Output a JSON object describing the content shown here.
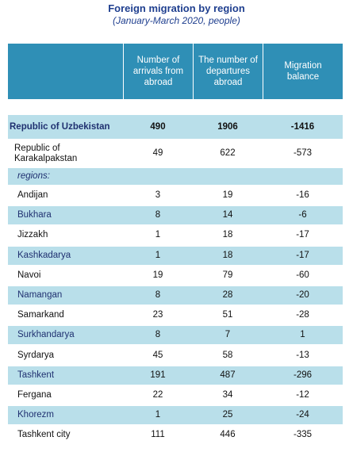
{
  "header": {
    "title": "Foreign migration by region",
    "subtitle": "(January-March 2020, people)"
  },
  "table": {
    "columns": [
      "Number of arrivals from abroad",
      "The number of departures abroad",
      "Migration balance"
    ],
    "total": [
      "Republic of Uzbekistan",
      490,
      1906,
      -1416
    ],
    "republic": [
      "Republic of Karakalpakstan",
      49,
      622,
      -573
    ],
    "regions_label": "regions:",
    "rows": [
      [
        "Andijan",
        3,
        19,
        -16
      ],
      [
        "Bukhara",
        8,
        14,
        -6
      ],
      [
        "Jizzakh",
        1,
        18,
        -17
      ],
      [
        "Kashkadarya",
        1,
        18,
        -17
      ],
      [
        "Navoi",
        19,
        79,
        -60
      ],
      [
        "Namangan",
        8,
        28,
        -20
      ],
      [
        "Samarkand",
        23,
        51,
        -28
      ],
      [
        "Surkhandarya",
        8,
        7,
        1
      ],
      [
        "Syrdarya",
        45,
        58,
        -13
      ],
      [
        "Tashkent",
        191,
        487,
        -296
      ],
      [
        "Fergana",
        22,
        34,
        -12
      ],
      [
        "Khorezm",
        1,
        25,
        -24
      ],
      [
        "Tashkent city",
        111,
        446,
        -335
      ]
    ]
  }
}
